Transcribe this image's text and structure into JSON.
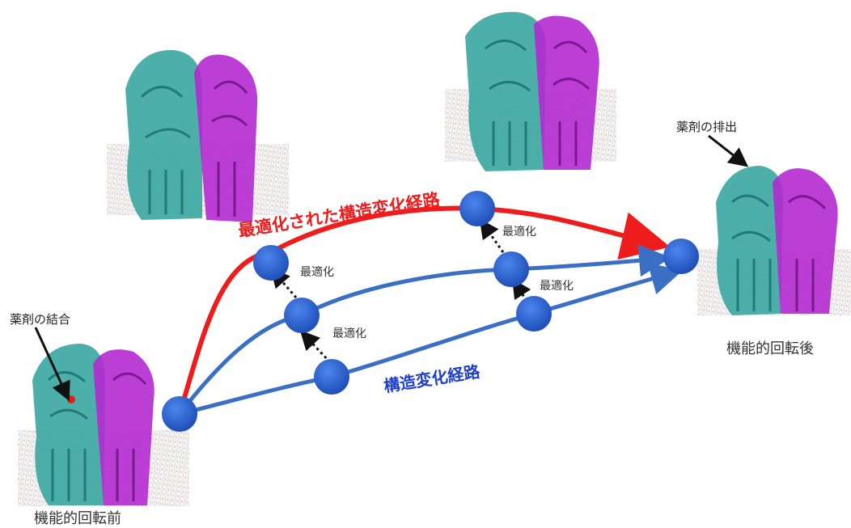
{
  "labels": {
    "optimized_path": "最適化された構造変化経路",
    "structural_path": "構造変化経路",
    "optimization": "最適化",
    "before_rotation": "機能的回転前",
    "after_rotation": "機能的回転後",
    "drug_binding": "薬剤の結合",
    "drug_release": "薬剤の排出"
  },
  "colors": {
    "optimized_path": "#ee1c1c",
    "structural_path": "#3b6fc4",
    "node_fill": "#2f66d6",
    "protein_teal": "#3aa6a0",
    "protein_magenta": "#b42ad0",
    "membrane": "#cfcfcf"
  }
}
